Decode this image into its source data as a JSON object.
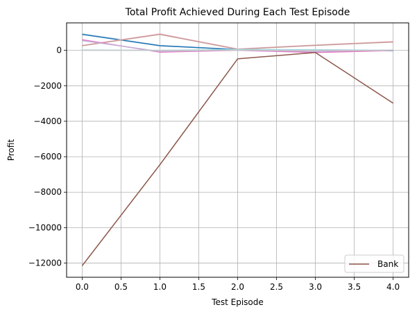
{
  "chart_data": {
    "type": "line",
    "title": "Total Profit Achieved During Each Test Episode",
    "xlabel": "Test Episode",
    "ylabel": "Profit",
    "xlim": [
      -0.2,
      4.2
    ],
    "ylim": [
      -12800,
      1550
    ],
    "xticks": [
      0.0,
      0.5,
      1.0,
      1.5,
      2.0,
      2.5,
      3.0,
      3.5,
      4.0
    ],
    "xtick_labels": [
      "0.0",
      "0.5",
      "1.0",
      "1.5",
      "2.0",
      "2.5",
      "3.0",
      "3.5",
      "4.0"
    ],
    "yticks": [
      -12000,
      -10000,
      -8000,
      -6000,
      -4000,
      -2000,
      0
    ],
    "ytick_labels": [
      "−12000",
      "−10000",
      "−8000",
      "−6000",
      "−4000",
      "−2000",
      "0"
    ],
    "grid": true,
    "legend_position": "lower-right",
    "x": [
      0,
      1,
      2,
      3,
      4
    ],
    "series": [
      {
        "name": "Bank",
        "color": "#8c564b",
        "values": [
          -12150,
          -6450,
          -480,
          -120,
          -2980
        ]
      },
      {
        "color": "#aec7e8",
        "values": [
          930,
          280,
          50,
          20,
          -10
        ]
      },
      {
        "color": "#1f77b4",
        "values": [
          900,
          260,
          40,
          10,
          -20
        ]
      },
      {
        "color": "#f7b6d2",
        "values": [
          280,
          930,
          80,
          300,
          500
        ]
      },
      {
        "color": "#c49c94",
        "values": [
          260,
          900,
          60,
          280,
          470
        ]
      },
      {
        "color": "#e377c2",
        "values": [
          600,
          -100,
          0,
          -120,
          -10
        ]
      },
      {
        "color": "#c5b0d5",
        "values": [
          550,
          -60,
          20,
          -60,
          20
        ]
      },
      {
        "color": "#9edae5",
        "values": [
          20,
          0,
          50,
          40,
          0
        ]
      },
      {
        "color": "#c7c7c7",
        "values": [
          0,
          0,
          0,
          0,
          0
        ]
      }
    ]
  }
}
